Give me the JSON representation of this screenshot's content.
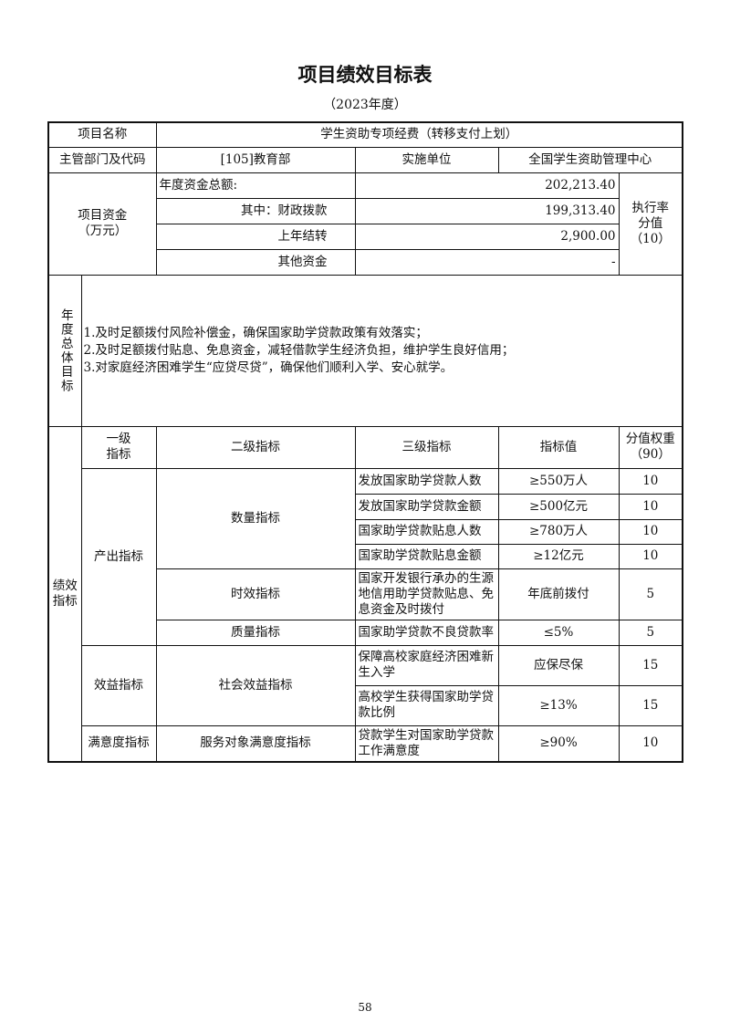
{
  "title": "项目绩效目标表",
  "subtitle": "（2023年度）",
  "project": {
    "name_label": "项目名称",
    "name": "学生资助专项经费（转移支付上划）",
    "dept_label": "主管部门及代码",
    "dept": "[105]教育部",
    "impl_label": "实施单位",
    "impl": "全国学生资助管理中心"
  },
  "funds": {
    "label": "项目资金\n（万元）",
    "total_label": "年度资金总额:",
    "total": "202,213.40",
    "fiscal_label": "其中：财政拨款",
    "fiscal": "199,313.40",
    "carry_label": "上年结转",
    "carry": "2,900.00",
    "other_label": "其他资金",
    "other": "-",
    "rate_label": "执行率\n分值\n（10）"
  },
  "goals": {
    "label": "年度总体目标",
    "items": [
      "1.及时足额拨付风险补偿金，确保国家助学贷款政策有效落实；",
      "2.及时足额拨付贴息、免息资金，减轻借款学生经济负担，维护学生良好信用；",
      "3.对家庭经济困难学生“应贷尽贷”，确保他们顺利入学、安心就学。"
    ]
  },
  "indicators": {
    "label": "绩效指标",
    "headers": [
      "一级\n指标",
      "二级指标",
      "三级指标",
      "指标值",
      "分值权重\n（90）"
    ],
    "l1": [
      "产出指标",
      "效益指标",
      "满意度指标"
    ],
    "l2": [
      "数量指标",
      "时效指标",
      "质量指标",
      "社会效益指标",
      "服务对象满意度指标"
    ],
    "rows": [
      {
        "name": "发放国家助学贷款人数",
        "value": "≥550万人",
        "weight": "10"
      },
      {
        "name": "发放国家助学贷款金额",
        "value": "≥500亿元",
        "weight": "10"
      },
      {
        "name": "国家助学贷款贴息人数",
        "value": "≥780万人",
        "weight": "10"
      },
      {
        "name": "国家助学贷款贴息金额",
        "value": "≥12亿元",
        "weight": "10"
      },
      {
        "name": "国家开发银行承办的生源地信用助学贷款贴息、免息资金及时拨付",
        "value": "年底前拨付",
        "weight": "5"
      },
      {
        "name": "国家助学贷款不良贷款率",
        "value": "≤5%",
        "weight": "5"
      },
      {
        "name": "保障高校家庭经济困难新生入学",
        "value": "应保尽保",
        "weight": "15"
      },
      {
        "name": "高校学生获得国家助学贷款比例",
        "value": "≥13%",
        "weight": "15"
      },
      {
        "name": "贷款学生对国家助学贷款工作满意度",
        "value": "≥90%",
        "weight": "10"
      }
    ]
  },
  "page_number": "58"
}
